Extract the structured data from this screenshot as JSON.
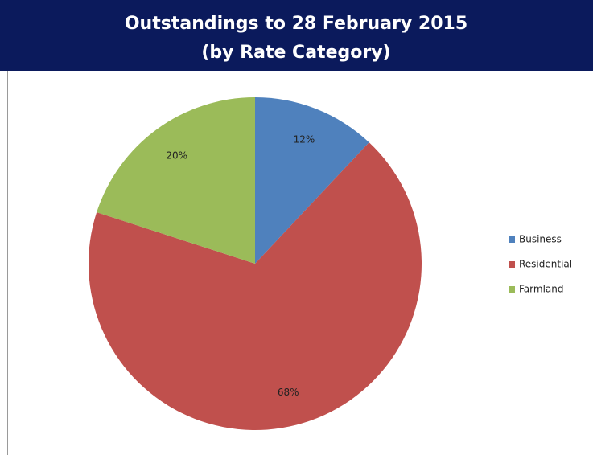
{
  "chart_data": {
    "type": "pie",
    "title": "Outstandings to 28 February 2015",
    "subtitle": "(by Rate Category)",
    "categories": [
      "Business",
      "Residential",
      "Farmland"
    ],
    "values": [
      12,
      68,
      20
    ],
    "value_labels": [
      "12%",
      "68%",
      "20%"
    ],
    "colors": [
      "#4f81bd",
      "#c0504d",
      "#9bbb59"
    ],
    "legend": "right"
  }
}
